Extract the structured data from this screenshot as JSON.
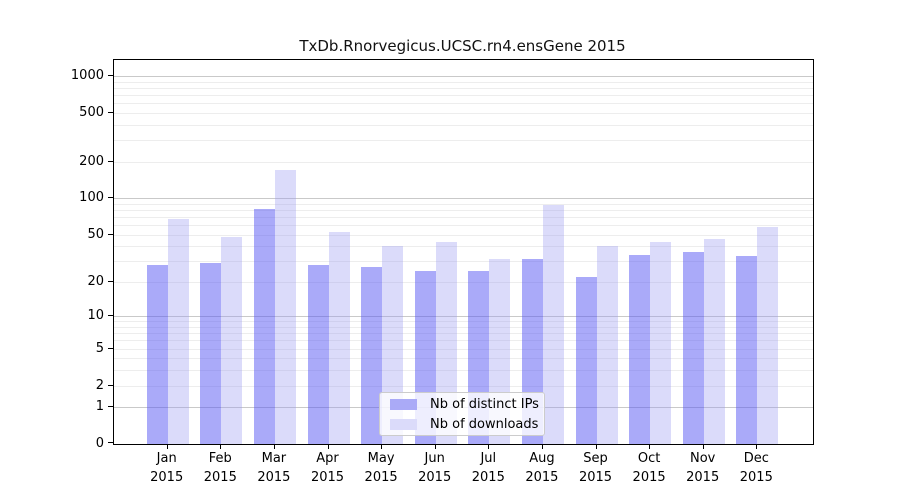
{
  "title": "TxDb.Rnorvegicus.UCSC.rn4.ensGene 2015",
  "chart_data": {
    "type": "bar",
    "title": "TxDb.Rnorvegicus.UCSC.rn4.ensGene 2015",
    "xlabel": "",
    "ylabel": "",
    "y_scale": "log1p",
    "ylim": [
      0,
      1320
    ],
    "y_ticks": [
      1000,
      500,
      200,
      100,
      50,
      20,
      10,
      5,
      2,
      1,
      0
    ],
    "grid": "horizontal, major and minor",
    "legend_position": "lower center inside plot",
    "categories": [
      "Jan",
      "Feb",
      "Mar",
      "Apr",
      "May",
      "Jun",
      "Jul",
      "Aug",
      "Sep",
      "Oct",
      "Nov",
      "Dec"
    ],
    "year": "2015",
    "series": [
      {
        "name": "Nb of distinct IPs",
        "color": "rgba(85,85,243,0.5)",
        "legend_color": "#aaaaf7",
        "values": [
          28,
          29,
          82,
          28,
          27,
          25,
          25,
          31,
          22,
          34,
          36,
          33
        ]
      },
      {
        "name": "Nb of downloads",
        "color": "rgba(152,152,241,0.35)",
        "legend_color": "#dbdbfa",
        "values": [
          68,
          48,
          170,
          53,
          40,
          43,
          31,
          88,
          40,
          43,
          46,
          58
        ]
      }
    ]
  },
  "colors": {
    "bar_dark": "#aaaaf7",
    "bar_light": "#dbdbfa",
    "grid_major": "#c9c9c9",
    "grid_minor": "#ededed",
    "axis": "#000000"
  }
}
